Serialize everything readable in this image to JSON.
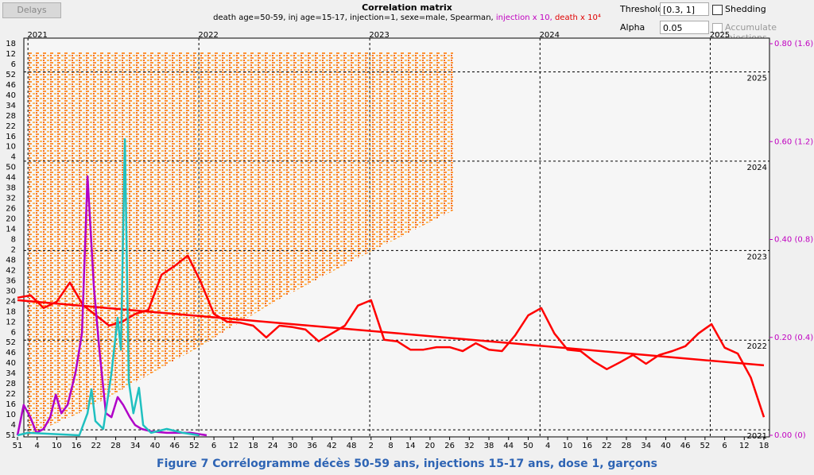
{
  "ui": {
    "delays_button": "Delays",
    "threshold_label": "Threshold",
    "threshold_value": "[0.3, 1]",
    "shedding_label": "Shedding",
    "alpha_label": "Alpha",
    "alpha_value": "0.05",
    "accumulate_label": "Accumulate injections"
  },
  "chart_data": {
    "type": "line",
    "title": "Correlation matrix",
    "subtitle": [
      "death age=50-59, inj age=15-17, injection=1, sexe=male, Spearman, ",
      "injection x 10, ",
      "death x 10⁴"
    ],
    "subtitle_colors": [
      "#000000",
      "#c000c0",
      "#e00000"
    ],
    "xlim": [
      0,
      228
    ],
    "xtick_labels": [
      "51",
      "4",
      "10",
      "16",
      "22",
      "28",
      "34",
      "40",
      "46",
      "52",
      "6",
      "12",
      "18",
      "24",
      "30",
      "36",
      "42",
      "48",
      "2",
      "8",
      "14",
      "20",
      "26",
      "32",
      "38",
      "44",
      "50",
      "4",
      "10",
      "16",
      "22",
      "28",
      "34",
      "40",
      "46",
      "52",
      "6",
      "12",
      "18"
    ],
    "left_tick_labels": [
      "18",
      "12",
      "6",
      "52",
      "46",
      "40",
      "34",
      "28",
      "22",
      "16",
      "10",
      "4",
      "50",
      "44",
      "38",
      "32",
      "26",
      "20",
      "14",
      "8",
      "2",
      "48",
      "42",
      "36",
      "30",
      "24",
      "18",
      "12",
      "6",
      "52",
      "46",
      "40",
      "34",
      "28",
      "22",
      "16",
      "10",
      "4",
      "51"
    ],
    "years": [
      {
        "label": "2021",
        "x": 3.2
      },
      {
        "label": "2022",
        "x": 55.4
      },
      {
        "label": "2023",
        "x": 107.6
      },
      {
        "label": "2024",
        "x": 159.6
      },
      {
        "label": "2025",
        "x": 211.6
      }
    ],
    "ylim": [
      0,
      0.8
    ],
    "yticks": [
      {
        "value": 0,
        "label": "0.00 (0)"
      },
      {
        "value": 0.2,
        "label": "0.20 (0.4)"
      },
      {
        "value": 0.4,
        "label": "0.40 (0.8)"
      },
      {
        "value": 0.6,
        "label": "0.60 (1.2)"
      },
      {
        "value": 0.8,
        "label": "0.80 (1.6)"
      }
    ],
    "ytick_color": "#c000c0",
    "series": [
      {
        "color": "#ff0000",
        "x": [
          0,
          4,
          8,
          12,
          16,
          20,
          24,
          28,
          32,
          36,
          40,
          44,
          48,
          52,
          56,
          60,
          64,
          68,
          72,
          76,
          80,
          84,
          88,
          92,
          96,
          100,
          104,
          108,
          112,
          116,
          120,
          124,
          128,
          132,
          136,
          140,
          144,
          148,
          152,
          156,
          160,
          164,
          168,
          172,
          176,
          180,
          184,
          188,
          192,
          196,
          200,
          204,
          208,
          212,
          216,
          220,
          224,
          228
        ],
        "values": [
          0.281,
          0.286,
          0.26,
          0.273,
          0.312,
          0.266,
          0.245,
          0.224,
          0.232,
          0.248,
          0.256,
          0.328,
          0.346,
          0.367,
          0.313,
          0.248,
          0.232,
          0.23,
          0.224,
          0.2,
          0.224,
          0.221,
          0.216,
          0.192,
          0.208,
          0.224,
          0.265,
          0.276,
          0.195,
          0.192,
          0.175,
          0.175,
          0.18,
          0.18,
          0.172,
          0.188,
          0.175,
          0.172,
          0.204,
          0.245,
          0.26,
          0.208,
          0.175,
          0.172,
          0.151,
          0.135,
          0.149,
          0.164,
          0.146,
          0.164,
          0.172,
          0.182,
          0.208,
          0.227,
          0.179,
          0.167,
          0.118,
          0.037
        ]
      },
      {
        "color": "#ff0000",
        "x": [
          0,
          228
        ],
        "values": [
          0.276,
          0.143
        ]
      },
      {
        "color": "#b000c8",
        "x": [
          0,
          1.9,
          3.9,
          5.8,
          8.0,
          10.0,
          11.7,
          13.4,
          15.3,
          17.7,
          19.7,
          21.4,
          23.3,
          25.0,
          27.0,
          28.7,
          30.6,
          32.3,
          34.3,
          35.9,
          37.9,
          40.8,
          45.6,
          52.9,
          57.8
        ],
        "values": [
          0,
          0.062,
          0.037,
          0.005,
          0.013,
          0.037,
          0.083,
          0.045,
          0.062,
          0.127,
          0.208,
          0.529,
          0.305,
          0.175,
          0.045,
          0.037,
          0.078,
          0.062,
          0.037,
          0.021,
          0.013,
          0.008,
          0.005,
          0.005,
          0
        ]
      },
      {
        "color": "#20c0c0",
        "x": [
          0,
          3.2,
          18.9,
          21.4,
          22.6,
          23.8,
          26.2,
          28.7,
          30.6,
          31.6,
          32.8,
          34.0,
          35.4,
          37.1,
          38.4,
          40.8,
          45.6,
          50.5,
          55.4
        ],
        "values": [
          0,
          0.005,
          0,
          0.045,
          0.094,
          0.029,
          0.013,
          0.127,
          0.24,
          0.175,
          0.605,
          0.11,
          0.045,
          0.097,
          0.021,
          0.005,
          0.013,
          0.005,
          0
        ]
      }
    ]
  },
  "caption": "Figure 7 Corrélogramme décès 50-59 ans, injections 15-17 ans, dose 1, garçons"
}
